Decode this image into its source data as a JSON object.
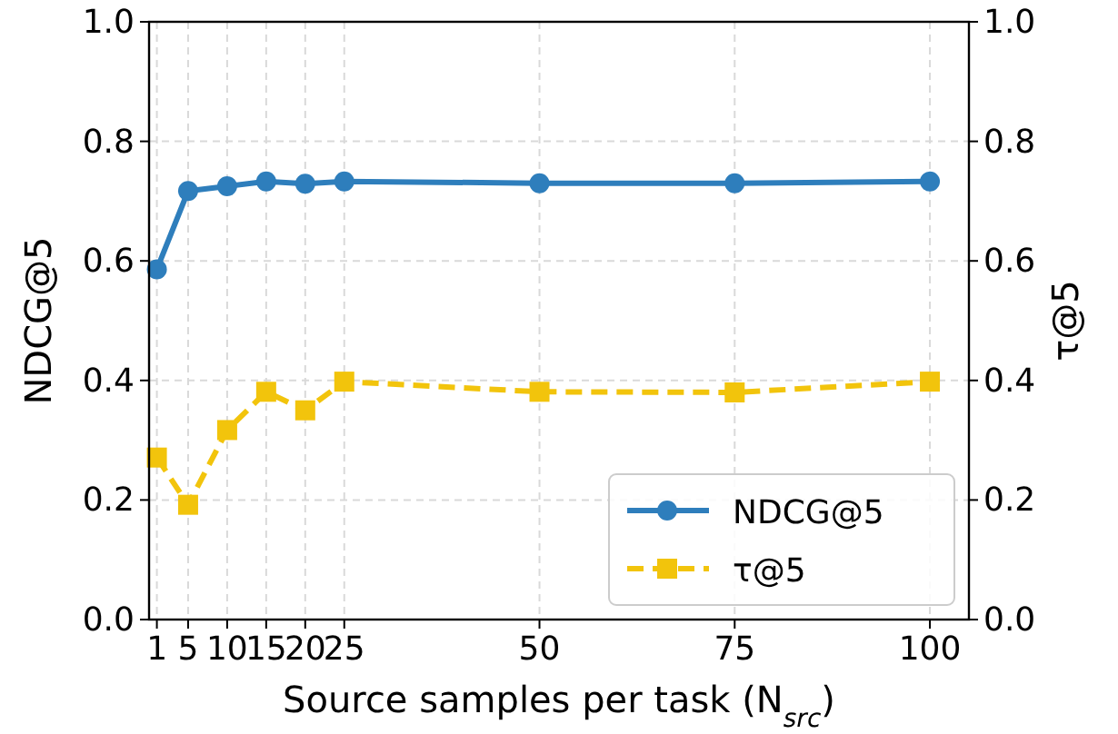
{
  "chart_data": {
    "type": "line",
    "xlabel": "Source samples per task (N$_{src}$)",
    "ylabel": "NDCG@5",
    "y2label": "τ@5",
    "x": [
      1,
      5,
      10,
      15,
      20,
      25,
      50,
      75,
      100
    ],
    "series": [
      {
        "name": "NDCG@5",
        "color": "#2e7ebc",
        "values": [
          0.586,
          0.717,
          0.725,
          0.733,
          0.729,
          0.733,
          0.73,
          0.73,
          0.733
        ],
        "marker": "circle",
        "line_style": "solid"
      },
      {
        "name": "τ@5",
        "color": "#f2c40c",
        "values": [
          0.271,
          0.192,
          0.317,
          0.381,
          0.35,
          0.398,
          0.381,
          0.38,
          0.398
        ],
        "marker": "square",
        "line_style": "dashed",
        "axis": "y2"
      }
    ],
    "xlim": [
      0,
      105
    ],
    "xticks": [
      1,
      5,
      10,
      15,
      20,
      25,
      50,
      75,
      100
    ],
    "ylim": [
      0,
      1
    ],
    "yticks": [
      {
        "value": 0,
        "label": "0.0"
      },
      0.2,
      0.4,
      0.6,
      0.8,
      {
        "value": 1,
        "label": "1.0"
      }
    ],
    "y2lim": [
      0,
      1
    ],
    "y2ticks": [
      {
        "value": 0,
        "label": "0.0"
      },
      0.2,
      0.4,
      0.6,
      0.8,
      {
        "value": 1,
        "label": "1.0"
      }
    ],
    "grid": true,
    "legend": "bottom right"
  }
}
